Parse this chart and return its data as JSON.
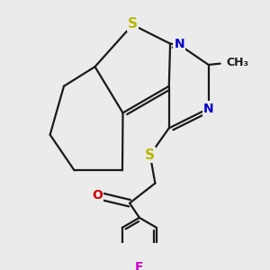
{
  "bg_color": "#ebebeb",
  "bond_color": "#1a1a1a",
  "bond_width": 1.6,
  "dbo": 0.014,
  "atom_colors": {
    "S": "#b8b800",
    "N": "#0000cc",
    "O": "#cc0000",
    "F": "#cc00cc",
    "C": "#1a1a1a"
  },
  "fs": 10
}
